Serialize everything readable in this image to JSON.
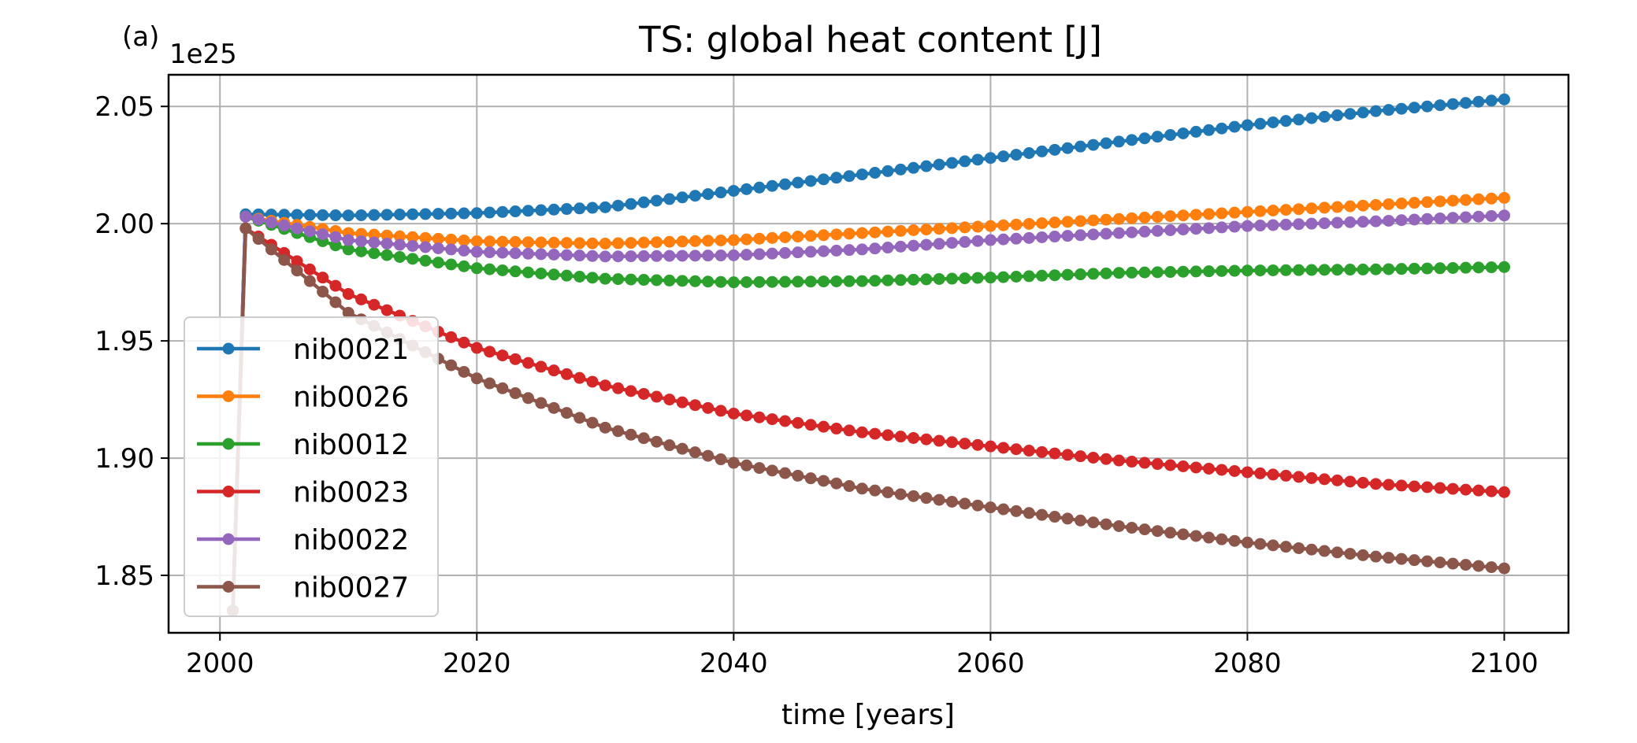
{
  "panel_label": "(a)",
  "chart_data": {
    "type": "line",
    "title": "TS: global heat content [J]",
    "xlabel": "time [years]",
    "ylabel": "",
    "y_multiplier_label": "1e25",
    "y_multiplier": 1e+25,
    "xlim": [
      1996,
      2105
    ],
    "ylim": [
      1.8255,
      2.0635
    ],
    "xticks": [
      2000,
      2020,
      2040,
      2060,
      2080,
      2100
    ],
    "yticks": [
      1.85,
      1.9,
      1.95,
      2.0,
      2.05
    ],
    "ytick_labels": [
      "1.85",
      "1.90",
      "1.95",
      "2.00",
      "2.05"
    ],
    "grid": true,
    "legend_position": "lower-left",
    "markers": "circle",
    "series": [
      {
        "name": "nib0021",
        "color": "#1f77b4",
        "start": {
          "x": 2001,
          "y": 1.835
        },
        "anchors": [
          [
            2002,
            2.004
          ],
          [
            2010,
            2.0035
          ],
          [
            2020,
            2.0045
          ],
          [
            2030,
            2.007
          ],
          [
            2040,
            2.014
          ],
          [
            2050,
            2.021
          ],
          [
            2060,
            2.028
          ],
          [
            2070,
            2.035
          ],
          [
            2080,
            2.042
          ],
          [
            2090,
            2.048
          ],
          [
            2100,
            2.053
          ]
        ]
      },
      {
        "name": "nib0026",
        "color": "#ff7f0e",
        "start": {
          "x": 2001,
          "y": 1.835
        },
        "anchors": [
          [
            2002,
            2.003
          ],
          [
            2010,
            1.996
          ],
          [
            2020,
            1.9925
          ],
          [
            2030,
            1.9915
          ],
          [
            2040,
            1.993
          ],
          [
            2050,
            1.996
          ],
          [
            2060,
            1.999
          ],
          [
            2070,
            2.002
          ],
          [
            2080,
            2.005
          ],
          [
            2090,
            2.008
          ],
          [
            2100,
            2.011
          ]
        ]
      },
      {
        "name": "nib0012",
        "color": "#2ca02c",
        "start": {
          "x": 2001,
          "y": 1.835
        },
        "anchors": [
          [
            2002,
            2.003
          ],
          [
            2010,
            1.989
          ],
          [
            2020,
            1.981
          ],
          [
            2030,
            1.9765
          ],
          [
            2040,
            1.975
          ],
          [
            2050,
            1.9755
          ],
          [
            2060,
            1.977
          ],
          [
            2070,
            1.979
          ],
          [
            2080,
            1.98
          ],
          [
            2090,
            1.9805
          ],
          [
            2100,
            1.9815
          ]
        ]
      },
      {
        "name": "nib0023",
        "color": "#d62728",
        "start": {
          "x": 2001,
          "y": 1.835
        },
        "anchors": [
          [
            2002,
            1.998
          ],
          [
            2010,
            1.97
          ],
          [
            2020,
            1.947
          ],
          [
            2030,
            1.931
          ],
          [
            2040,
            1.919
          ],
          [
            2050,
            1.911
          ],
          [
            2060,
            1.905
          ],
          [
            2070,
            1.899
          ],
          [
            2080,
            1.894
          ],
          [
            2090,
            1.889
          ],
          [
            2100,
            1.8855
          ]
        ]
      },
      {
        "name": "nib0022",
        "color": "#9467bd",
        "start": {
          "x": 2001,
          "y": 1.835
        },
        "anchors": [
          [
            2002,
            2.003
          ],
          [
            2010,
            1.993
          ],
          [
            2020,
            1.988
          ],
          [
            2030,
            1.986
          ],
          [
            2040,
            1.9865
          ],
          [
            2050,
            1.989
          ],
          [
            2060,
            1.993
          ],
          [
            2070,
            1.996
          ],
          [
            2080,
            1.999
          ],
          [
            2090,
            2.001
          ],
          [
            2100,
            2.0035
          ]
        ]
      },
      {
        "name": "nib0027",
        "color": "#8c564b",
        "start": {
          "x": 2001,
          "y": 1.835
        },
        "anchors": [
          [
            2002,
            1.998
          ],
          [
            2010,
            1.962
          ],
          [
            2020,
            1.934
          ],
          [
            2030,
            1.913
          ],
          [
            2040,
            1.898
          ],
          [
            2050,
            1.887
          ],
          [
            2060,
            1.879
          ],
          [
            2070,
            1.871
          ],
          [
            2080,
            1.864
          ],
          [
            2090,
            1.858
          ],
          [
            2100,
            1.853
          ]
        ]
      }
    ]
  }
}
